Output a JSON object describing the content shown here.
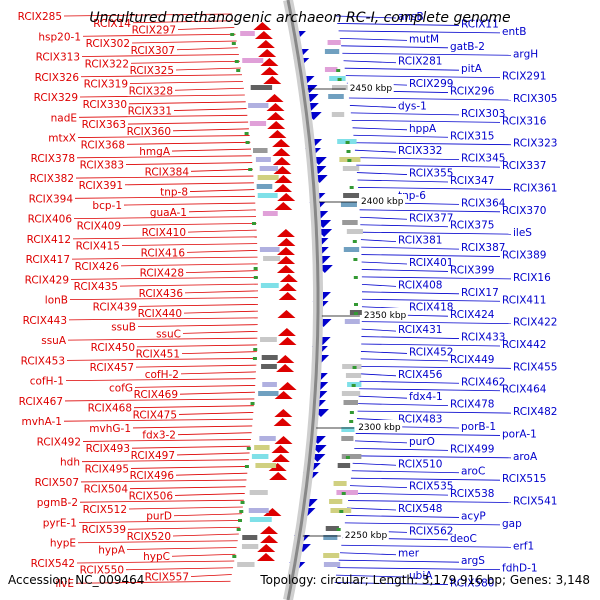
{
  "title": "Uncultured methanogenic archaeon RC-I, complete genome",
  "footer": {
    "accession": "Accession: NC_009464",
    "info": "Topology: circular; Length: 3,179,916 bp; Genes: 3,148"
  },
  "colors": {
    "left_strand": "#dd0000",
    "right_strand": "#0000cc",
    "backbone": "#888888",
    "gc_marks": "#339933"
  },
  "ruler": [
    "2450 kbp",
    "2400 kbp",
    "2350 kbp",
    "2300 kbp",
    "2250 kbp"
  ],
  "left_labels": [
    "RCIX285",
    "RCIX14",
    "RCIX297",
    "hsp20-1",
    "RCIX302",
    "RCIX307",
    "RCIX313",
    "RCIX322",
    "RCIX325",
    "RCIX326",
    "RCIX319",
    "RCIX328",
    "RCIX329",
    "RCIX330",
    "RCIX331",
    "nadE",
    "RCIX363",
    "RCIX360",
    "mtxX",
    "RCIX368",
    "hmgA",
    "RCIX378",
    "RCIX383",
    "RCIX384",
    "RCIX382",
    "RCIX391",
    "tnp-8",
    "RCIX394",
    "bcp-1",
    "guaA-1",
    "RCIX406",
    "RCIX409",
    "RCIX410",
    "RCIX412",
    "RCIX415",
    "RCIX416",
    "RCIX417",
    "RCIX426",
    "RCIX428",
    "RCIX429",
    "RCIX435",
    "RCIX436",
    "lonB",
    "RCIX439",
    "RCIX440",
    "RCIX443",
    "ssuB",
    "ssuC",
    "ssuA",
    "RCIX450",
    "RCIX451",
    "RCIX453",
    "RCIX457",
    "cofH-2",
    "cofH-1",
    "cofG",
    "RCIX469",
    "RCIX467",
    "RCIX468",
    "RCIX475",
    "mvhA-1",
    "mvhG-1",
    "fdx3-2",
    "RCIX492",
    "RCIX493",
    "RCIX497",
    "hdh",
    "RCIX495",
    "RCIX496",
    "RCIX507",
    "RCIX504",
    "RCIX506",
    "pgmB-2",
    "RCIX512",
    "purD",
    "pyrE-1",
    "RCIX539",
    "RCIX520",
    "hypE",
    "hypA",
    "hypC",
    "RCIX542",
    "RCIX550",
    "RCIX557",
    "ilvE"
  ],
  "right_labels": [
    "ansB",
    "RCIX11",
    "entB",
    "mutM",
    "gatB-2",
    "argH",
    "RCIX281",
    "pitA",
    "RCIX291",
    "RCIX299",
    "RCIX296",
    "RCIX305",
    "dys-1",
    "RCIX303",
    "RCIX316",
    "hppA",
    "RCIX315",
    "RCIX323",
    "RCIX332",
    "RCIX345",
    "RCIX337",
    "RCIX355",
    "RCIX347",
    "RCIX361",
    "tnp-6",
    "RCIX364",
    "RCIX370",
    "RCIX377",
    "RCIX375",
    "ileS",
    "RCIX381",
    "RCIX387",
    "RCIX389",
    "RCIX401",
    "RCIX399",
    "RCIX16",
    "RCIX408",
    "RCIX17",
    "RCIX411",
    "RCIX418",
    "RCIX424",
    "RCIX422",
    "RCIX431",
    "RCIX433",
    "RCIX442",
    "RCIX452",
    "RCIX449",
    "RCIX455",
    "RCIX456",
    "RCIX462",
    "RCIX464",
    "fdx4-1",
    "RCIX478",
    "RCIX482",
    "RCIX483",
    "porB-1",
    "porA-1",
    "purO",
    "RCIX499",
    "aroA",
    "RCIX510",
    "aroC",
    "RCIX515",
    "RCIX535",
    "RCIX538",
    "RCIX541",
    "RCIX548",
    "acyP",
    "gap",
    "RCIX562",
    "deoC",
    "erf1",
    "mer",
    "argS",
    "fdhD-1",
    "ubiA",
    "RCIX580"
  ]
}
